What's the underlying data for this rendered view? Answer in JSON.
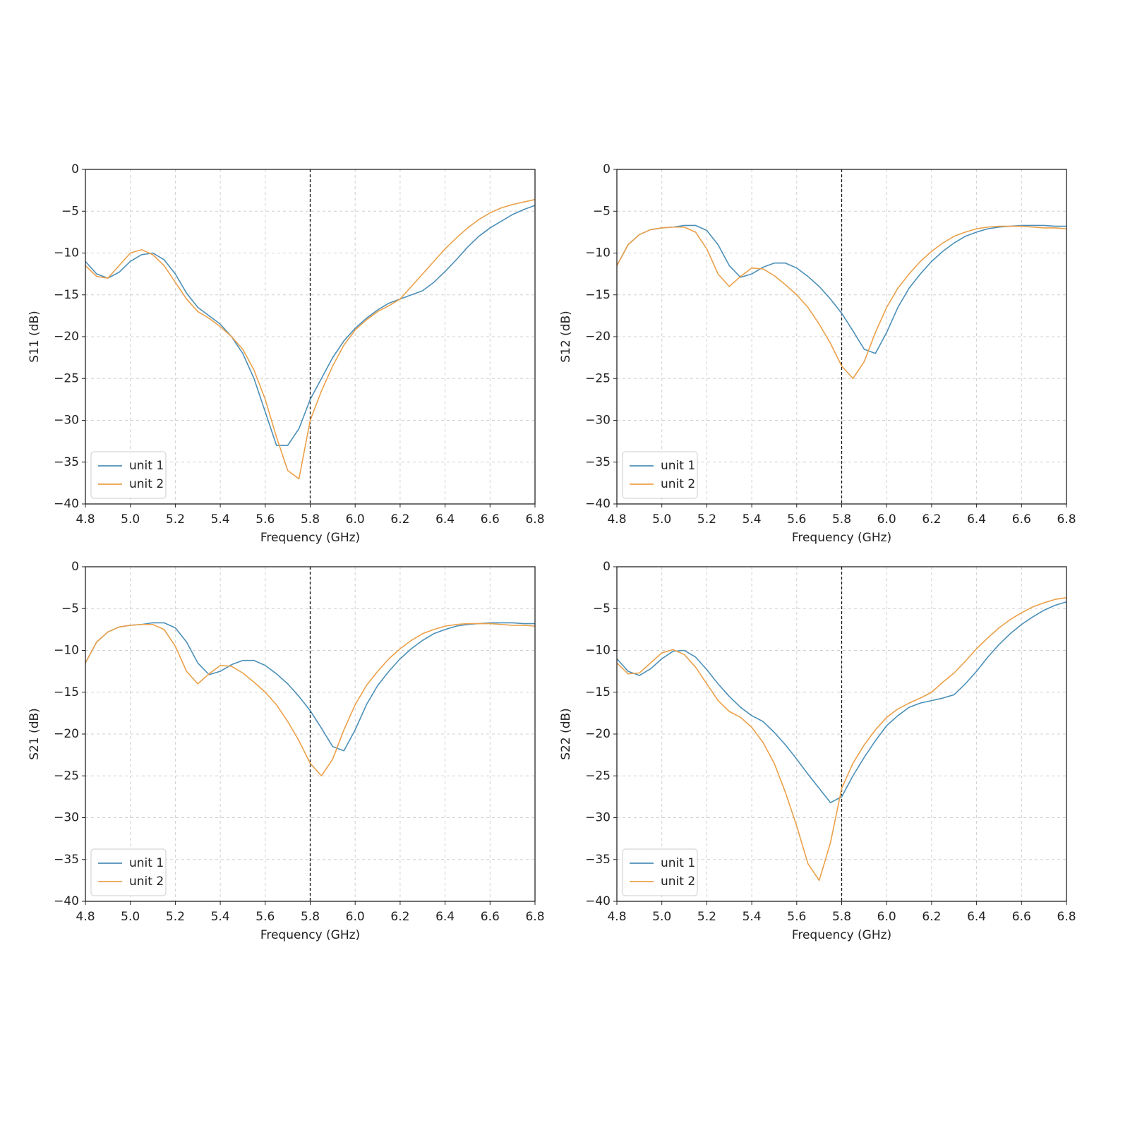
{
  "chart_data": [
    {
      "type": "line",
      "ylabel": "S11 (dB)",
      "xlabel": "Frequency (GHz)",
      "x": [
        4.8,
        4.85,
        4.9,
        4.95,
        5.0,
        5.05,
        5.1,
        5.15,
        5.2,
        5.25,
        5.3,
        5.35,
        5.4,
        5.45,
        5.5,
        5.55,
        5.6,
        5.65,
        5.7,
        5.75,
        5.8,
        5.85,
        5.9,
        5.95,
        6.0,
        6.05,
        6.1,
        6.15,
        6.2,
        6.25,
        6.3,
        6.35,
        6.4,
        6.45,
        6.5,
        6.55,
        6.6,
        6.65,
        6.7,
        6.75,
        6.8
      ],
      "series": [
        {
          "name": "unit 1",
          "color": "#4b8fb8",
          "values": [
            -11,
            -12.5,
            -13,
            -12.3,
            -11,
            -10.2,
            -10,
            -10.8,
            -12.5,
            -14.8,
            -16.5,
            -17.5,
            -18.5,
            -20,
            -22,
            -25,
            -29,
            -33,
            -33,
            -31,
            -27.5,
            -25,
            -22.5,
            -20.5,
            -19,
            -17.8,
            -16.8,
            -16,
            -15.5,
            -15,
            -14.5,
            -13.5,
            -12.2,
            -10.8,
            -9.3,
            -8,
            -7,
            -6.2,
            -5.4,
            -4.8,
            -4.3
          ]
        },
        {
          "name": "unit 2",
          "color": "#eba049",
          "values": [
            -11.5,
            -12.8,
            -13,
            -11.5,
            -10,
            -9.6,
            -10.2,
            -11.5,
            -13.5,
            -15.5,
            -17,
            -17.8,
            -18.8,
            -20,
            -21.5,
            -24,
            -27.5,
            -32,
            -36,
            -37,
            -30,
            -26.5,
            -23.5,
            -21,
            -19.2,
            -18,
            -17,
            -16.3,
            -15.5,
            -14,
            -12.5,
            -11,
            -9.5,
            -8.2,
            -7,
            -6,
            -5.2,
            -4.6,
            -4.2,
            -3.9,
            -3.6
          ]
        }
      ],
      "xlim": [
        4.8,
        6.8
      ],
      "ylim": [
        -40,
        0
      ],
      "xticks": [
        4.8,
        {
          "value": 5.0,
          "label": "5.0"
        },
        5.2,
        5.4,
        5.6,
        5.8,
        {
          "value": 6.0,
          "label": "6.0"
        },
        6.2,
        6.4,
        6.6,
        6.8
      ],
      "yticks": [
        {
          "value": -40,
          "label": "−40"
        },
        {
          "value": -35,
          "label": "−35"
        },
        {
          "value": -30,
          "label": "−30"
        },
        {
          "value": -25,
          "label": "−25"
        },
        {
          "value": -20,
          "label": "−20"
        },
        {
          "value": -15,
          "label": "−15"
        },
        {
          "value": -10,
          "label": "−10"
        },
        {
          "value": -5,
          "label": "−5"
        },
        0
      ],
      "vline": 5.8,
      "grid": true,
      "legend": "lower left"
    },
    {
      "type": "line",
      "ylabel": "S12 (dB)",
      "xlabel": "Frequency (GHz)",
      "x": [
        4.8,
        4.85,
        4.9,
        4.95,
        5.0,
        5.05,
        5.1,
        5.15,
        5.2,
        5.25,
        5.3,
        5.35,
        5.4,
        5.45,
        5.5,
        5.55,
        5.6,
        5.65,
        5.7,
        5.75,
        5.8,
        5.85,
        5.9,
        5.95,
        6.0,
        6.05,
        6.1,
        6.15,
        6.2,
        6.25,
        6.3,
        6.35,
        6.4,
        6.45,
        6.5,
        6.55,
        6.6,
        6.65,
        6.7,
        6.75,
        6.8
      ],
      "series": [
        {
          "name": "unit 1",
          "color": "#4b8fb8",
          "values": [
            -11.5,
            -9,
            -7.8,
            -7.2,
            -7,
            -6.9,
            -6.7,
            -6.7,
            -7.3,
            -9,
            -11.5,
            -12.9,
            -12.5,
            -11.7,
            -11.2,
            -11.2,
            -11.8,
            -12.8,
            -14,
            -15.5,
            -17.2,
            -19.3,
            -21.5,
            -22,
            -19.5,
            -16.5,
            -14.2,
            -12.5,
            -11,
            -9.8,
            -8.8,
            -8,
            -7.5,
            -7.1,
            -6.9,
            -6.8,
            -6.7,
            -6.7,
            -6.7,
            -6.8,
            -6.8
          ]
        },
        {
          "name": "unit 2",
          "color": "#eba049",
          "values": [
            -11.5,
            -9,
            -7.8,
            -7.2,
            -7,
            -6.9,
            -6.9,
            -7.5,
            -9.5,
            -12.5,
            -14,
            -12.8,
            -11.8,
            -11.9,
            -12.7,
            -13.8,
            -15,
            -16.5,
            -18.5,
            -20.8,
            -23.5,
            -25,
            -23,
            -19.5,
            -16.5,
            -14.2,
            -12.5,
            -11,
            -9.8,
            -8.8,
            -8,
            -7.5,
            -7.1,
            -6.9,
            -6.8,
            -6.8,
            -6.8,
            -6.9,
            -7,
            -7,
            -7.1
          ]
        }
      ],
      "xlim": [
        4.8,
        6.8
      ],
      "ylim": [
        -40,
        0
      ],
      "xticks": [
        4.8,
        {
          "value": 5.0,
          "label": "5.0"
        },
        5.2,
        5.4,
        5.6,
        5.8,
        {
          "value": 6.0,
          "label": "6.0"
        },
        6.2,
        6.4,
        6.6,
        6.8
      ],
      "yticks": [
        {
          "value": -40,
          "label": "−40"
        },
        {
          "value": -35,
          "label": "−35"
        },
        {
          "value": -30,
          "label": "−30"
        },
        {
          "value": -25,
          "label": "−25"
        },
        {
          "value": -20,
          "label": "−20"
        },
        {
          "value": -15,
          "label": "−15"
        },
        {
          "value": -10,
          "label": "−10"
        },
        {
          "value": -5,
          "label": "−5"
        },
        0
      ],
      "vline": 5.8,
      "grid": true,
      "legend": "lower left"
    },
    {
      "type": "line",
      "ylabel": "S21 (dB)",
      "xlabel": "Frequency (GHz)",
      "x": [
        4.8,
        4.85,
        4.9,
        4.95,
        5.0,
        5.05,
        5.1,
        5.15,
        5.2,
        5.25,
        5.3,
        5.35,
        5.4,
        5.45,
        5.5,
        5.55,
        5.6,
        5.65,
        5.7,
        5.75,
        5.8,
        5.85,
        5.9,
        5.95,
        6.0,
        6.05,
        6.1,
        6.15,
        6.2,
        6.25,
        6.3,
        6.35,
        6.4,
        6.45,
        6.5,
        6.55,
        6.6,
        6.65,
        6.7,
        6.75,
        6.8
      ],
      "series": [
        {
          "name": "unit 1",
          "color": "#4b8fb8",
          "values": [
            -11.5,
            -9,
            -7.8,
            -7.2,
            -7,
            -6.9,
            -6.7,
            -6.7,
            -7.3,
            -9,
            -11.5,
            -12.9,
            -12.5,
            -11.7,
            -11.2,
            -11.2,
            -11.8,
            -12.8,
            -14,
            -15.5,
            -17.2,
            -19.3,
            -21.5,
            -22,
            -19.5,
            -16.5,
            -14.2,
            -12.5,
            -11,
            -9.8,
            -8.8,
            -8,
            -7.5,
            -7.1,
            -6.9,
            -6.8,
            -6.7,
            -6.7,
            -6.7,
            -6.8,
            -6.8
          ]
        },
        {
          "name": "unit 2",
          "color": "#eba049",
          "values": [
            -11.5,
            -9,
            -7.8,
            -7.2,
            -7,
            -6.9,
            -6.9,
            -7.5,
            -9.5,
            -12.5,
            -14,
            -12.8,
            -11.8,
            -11.9,
            -12.7,
            -13.8,
            -15,
            -16.5,
            -18.5,
            -20.8,
            -23.5,
            -25,
            -23,
            -19.5,
            -16.5,
            -14.2,
            -12.5,
            -11,
            -9.8,
            -8.8,
            -8,
            -7.5,
            -7.1,
            -6.9,
            -6.8,
            -6.8,
            -6.8,
            -6.9,
            -7,
            -7,
            -7.1
          ]
        }
      ],
      "xlim": [
        4.8,
        6.8
      ],
      "ylim": [
        -40,
        0
      ],
      "xticks": [
        4.8,
        {
          "value": 5.0,
          "label": "5.0"
        },
        5.2,
        5.4,
        5.6,
        5.8,
        {
          "value": 6.0,
          "label": "6.0"
        },
        6.2,
        6.4,
        6.6,
        6.8
      ],
      "yticks": [
        {
          "value": -40,
          "label": "−40"
        },
        {
          "value": -35,
          "label": "−35"
        },
        {
          "value": -30,
          "label": "−30"
        },
        {
          "value": -25,
          "label": "−25"
        },
        {
          "value": -20,
          "label": "−20"
        },
        {
          "value": -15,
          "label": "−15"
        },
        {
          "value": -10,
          "label": "−10"
        },
        {
          "value": -5,
          "label": "−5"
        },
        0
      ],
      "vline": 5.8,
      "grid": true,
      "legend": "lower left"
    },
    {
      "type": "line",
      "ylabel": "S22 (dB)",
      "xlabel": "Frequency (GHz)",
      "x": [
        4.8,
        4.85,
        4.9,
        4.95,
        5.0,
        5.05,
        5.1,
        5.15,
        5.2,
        5.25,
        5.3,
        5.35,
        5.4,
        5.45,
        5.5,
        5.55,
        5.6,
        5.65,
        5.7,
        5.75,
        5.8,
        5.85,
        5.9,
        5.95,
        6.0,
        6.05,
        6.1,
        6.15,
        6.2,
        6.25,
        6.3,
        6.35,
        6.4,
        6.45,
        6.5,
        6.55,
        6.6,
        6.65,
        6.7,
        6.75,
        6.8
      ],
      "series": [
        {
          "name": "unit 1",
          "color": "#4b8fb8",
          "values": [
            -11,
            -12.5,
            -13,
            -12.2,
            -11,
            -10.1,
            -10,
            -10.8,
            -12.3,
            -14,
            -15.5,
            -16.8,
            -17.8,
            -18.5,
            -19.8,
            -21.3,
            -23,
            -24.8,
            -26.5,
            -28.2,
            -27.5,
            -25,
            -22.8,
            -20.8,
            -19,
            -17.8,
            -16.8,
            -16.3,
            -16,
            -15.7,
            -15.3,
            -14,
            -12.5,
            -10.8,
            -9.3,
            -8,
            -6.9,
            -6,
            -5.2,
            -4.6,
            -4.2
          ]
        },
        {
          "name": "unit 2",
          "color": "#eba049",
          "values": [
            -11.5,
            -12.8,
            -12.7,
            -11.5,
            -10.3,
            -9.9,
            -10.5,
            -12,
            -14,
            -16,
            -17.3,
            -18,
            -19.2,
            -21,
            -23.5,
            -27,
            -31,
            -35.5,
            -37.5,
            -33,
            -26.5,
            -23.5,
            -21.3,
            -19.5,
            -18,
            -17,
            -16.3,
            -15.7,
            -15,
            -13.8,
            -12.7,
            -11.3,
            -9.8,
            -8.5,
            -7.3,
            -6.3,
            -5.5,
            -4.8,
            -4.3,
            -3.9,
            -3.7
          ]
        }
      ],
      "xlim": [
        4.8,
        6.8
      ],
      "ylim": [
        -40,
        0
      ],
      "xticks": [
        4.8,
        {
          "value": 5.0,
          "label": "5.0"
        },
        5.2,
        5.4,
        5.6,
        5.8,
        {
          "value": 6.0,
          "label": "6.0"
        },
        6.2,
        6.4,
        6.6,
        6.8
      ],
      "yticks": [
        {
          "value": -40,
          "label": "−40"
        },
        {
          "value": -35,
          "label": "−35"
        },
        {
          "value": -30,
          "label": "−30"
        },
        {
          "value": -25,
          "label": "−25"
        },
        {
          "value": -20,
          "label": "−20"
        },
        {
          "value": -15,
          "label": "−15"
        },
        {
          "value": -10,
          "label": "−10"
        },
        {
          "value": -5,
          "label": "−5"
        },
        0
      ],
      "vline": 5.8,
      "grid": true,
      "legend": "lower left"
    }
  ]
}
